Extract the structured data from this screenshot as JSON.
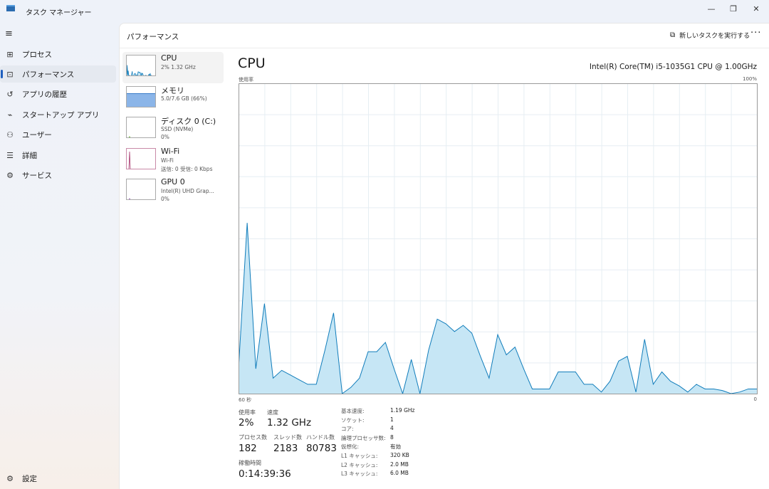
{
  "window": {
    "title": "タスク マネージャー",
    "minimize": "—",
    "maximize": "❐",
    "close": "✕"
  },
  "sidebar": {
    "menu_icon": "hamburger-icon",
    "items": [
      {
        "label": "プロセス",
        "icon": "processes-icon",
        "glyph": "⊞"
      },
      {
        "label": "パフォーマンス",
        "icon": "performance-icon",
        "glyph": "⊡",
        "active": true
      },
      {
        "label": "アプリの履歴",
        "icon": "history-icon",
        "glyph": "↺"
      },
      {
        "label": "スタートアップ アプリ",
        "icon": "startup-icon",
        "glyph": "⌁"
      },
      {
        "label": "ユーザー",
        "icon": "users-icon",
        "glyph": "⚇"
      },
      {
        "label": "詳細",
        "icon": "details-icon",
        "glyph": "☰"
      },
      {
        "label": "サービス",
        "icon": "services-icon",
        "glyph": "⚙"
      }
    ],
    "settings": {
      "label": "設定",
      "icon": "gear-icon",
      "glyph": "⚙"
    }
  },
  "header": {
    "title": "パフォーマンス",
    "run_task": "新しいタスクを実行する",
    "more": "···"
  },
  "devices": [
    {
      "title": "CPU",
      "sub1": "2%  1.32 GHz",
      "color": "#117dbb"
    },
    {
      "title": "メモリ",
      "sub1": "5.0/7.6 GB (66%)",
      "color": "#8bb5e8"
    },
    {
      "title": "ディスク 0 (C:)",
      "sub1": "SSD (NVMe)",
      "sub2": "0%",
      "color": "#4da60c"
    },
    {
      "title": "Wi-Fi",
      "sub1": "Wi-Fi",
      "sub2": "送信: 0 受信: 0 Kbps",
      "color": "#a7386e"
    },
    {
      "title": "GPU 0",
      "sub1": "Intel(R) UHD Grap...",
      "sub2": "0%",
      "color": "#8e44ad"
    }
  ],
  "cpu": {
    "title": "CPU",
    "model": "Intel(R) Core(TM) i5-1035G1 CPU @ 1.00GHz",
    "graph_label": "使用率",
    "max_label": "100%",
    "time_label": "60 秒",
    "min_label": "0",
    "line_color": "#117dbb",
    "fill_color": "#c6e6f5",
    "stats": {
      "usage_label": "使用率",
      "usage": "2%",
      "speed_label": "速度",
      "speed": "1.32 GHz",
      "proc_label": "プロセス数",
      "proc": "182",
      "thread_label": "スレッド数",
      "thread": "2183",
      "handle_label": "ハンドル数",
      "handle": "80783",
      "uptime_label": "稼働時間",
      "uptime": "0:14:39:36"
    },
    "specs": [
      [
        "基本速度:",
        "1.19 GHz"
      ],
      [
        "ソケット:",
        "1"
      ],
      [
        "コア:",
        "4"
      ],
      [
        "論理プロセッサ数:",
        "8"
      ],
      [
        "仮想化:",
        "有効"
      ],
      [
        "L1 キャッシュ:",
        "320 KB"
      ],
      [
        "L2 キャッシュ:",
        "2.0 MB"
      ],
      [
        "L3 キャッシュ:",
        "6.0 MB"
      ]
    ]
  },
  "chart_data": {
    "type": "area",
    "ylim": [
      0,
      100
    ],
    "xlim": [
      60,
      0
    ],
    "grid": true,
    "values": [
      8,
      55,
      8,
      29,
      5,
      7.5,
      6,
      4.5,
      3,
      3,
      14,
      26,
      0,
      2,
      5,
      13.5,
      13.5,
      16.5,
      8,
      0,
      11,
      0,
      14,
      24,
      22.5,
      20,
      22,
      19.5,
      12,
      5,
      19,
      12.5,
      15,
      8,
      1.5,
      1.5,
      1.5,
      7,
      7,
      7,
      3,
      3,
      0.5,
      4,
      10.5,
      12,
      0.5,
      17.5,
      3,
      7,
      4,
      2.5,
      0.5,
      3,
      1.5,
      1.5,
      1,
      0,
      0.5,
      1.5,
      1.5
    ]
  }
}
